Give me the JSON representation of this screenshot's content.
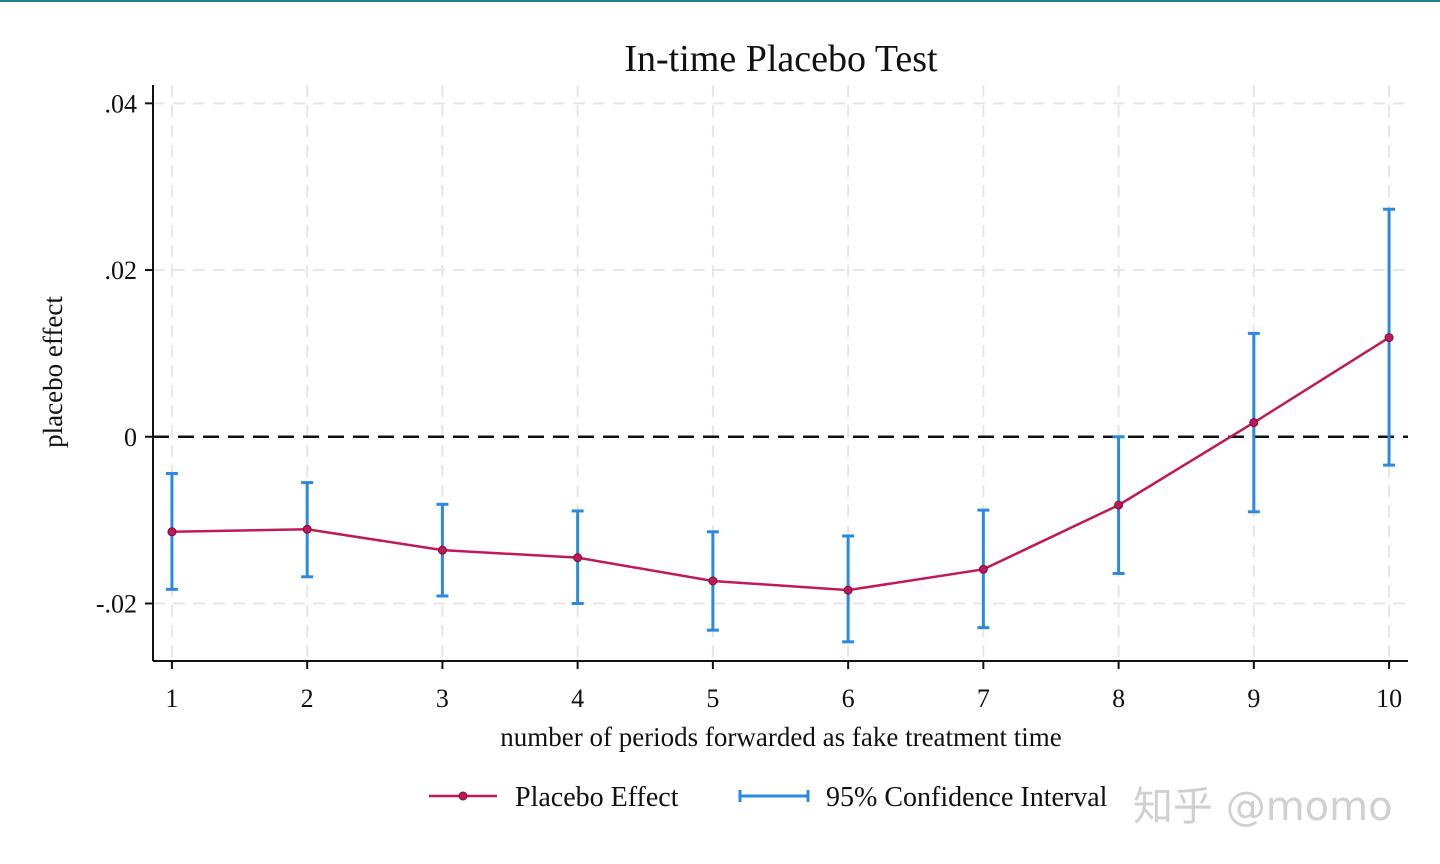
{
  "chart_data": {
    "type": "line",
    "title": "In-time Placebo Test",
    "xlabel": "number of periods forwarded as fake treatment time",
    "ylabel": "placebo effect",
    "x": [
      1,
      2,
      3,
      4,
      5,
      6,
      7,
      8,
      9,
      10
    ],
    "x_ticks": [
      "1",
      "2",
      "3",
      "4",
      "5",
      "6",
      "7",
      "8",
      "9",
      "10"
    ],
    "y_ticks": [
      {
        "value": 0.04,
        "label": ".04"
      },
      {
        "value": 0.02,
        "label": ".02"
      },
      {
        "value": 0,
        "label": "0"
      },
      {
        "value": -0.02,
        "label": "-.02"
      }
    ],
    "xlim": [
      0.86,
      10.14
    ],
    "ylim": [
      -0.0269,
      0.0422
    ],
    "grid": true,
    "reference_line": 0,
    "legend_position": "bottom",
    "series": [
      {
        "name": "Placebo Effect",
        "kind": "line-marker",
        "color": "#c0195a",
        "values": [
          -0.0114,
          -0.0111,
          -0.0136,
          -0.0145,
          -0.0173,
          -0.0184,
          -0.0159,
          -0.0082,
          0.0017,
          0.0119
        ]
      },
      {
        "name": "95% Confidence Interval",
        "kind": "error-bar",
        "color": "#2b8ae0",
        "lower": [
          -0.0183,
          -0.0168,
          -0.0191,
          -0.02,
          -0.0232,
          -0.0246,
          -0.0229,
          -0.0164,
          -0.009,
          -0.0034
        ],
        "upper": [
          -0.0044,
          -0.0055,
          -0.0081,
          -0.0089,
          -0.0114,
          -0.0119,
          -0.0088,
          0.0,
          0.0124,
          0.0273
        ]
      }
    ]
  },
  "watermark": "知乎 @momo"
}
